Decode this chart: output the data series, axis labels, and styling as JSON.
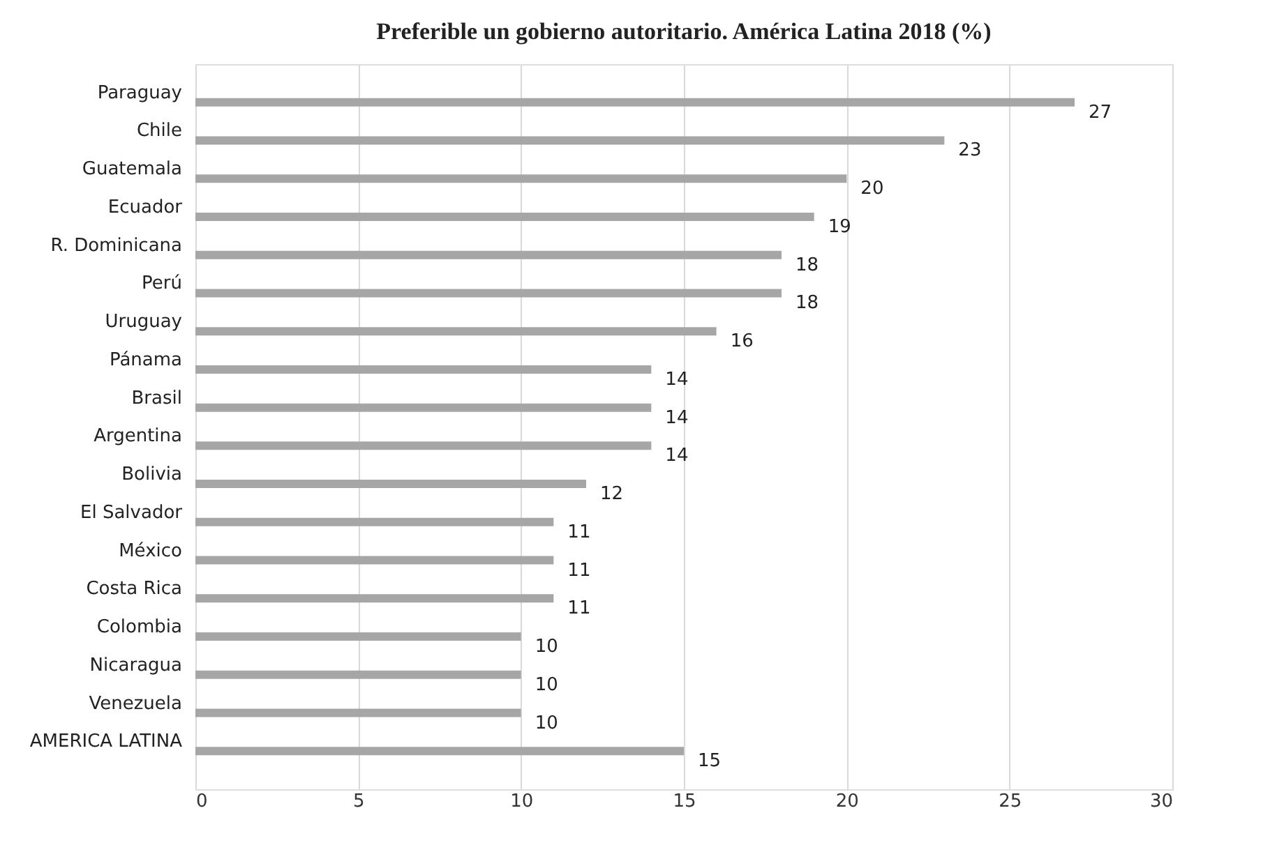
{
  "chart_data": {
    "type": "bar",
    "orientation": "horizontal",
    "title": "Preferible un gobierno autoritario. América Latina 2018 (%)",
    "categories": [
      "Paraguay",
      "Chile",
      "Guatemala",
      "Ecuador",
      "R. Dominicana",
      "Perú",
      "Uruguay",
      "Pánama",
      "Brasil",
      "Argentina",
      "Bolivia",
      "El Salvador",
      "México",
      "Costa Rica",
      "Colombia",
      "Nicaragua",
      "Venezuela",
      "AMERICA LATINA"
    ],
    "values": [
      27,
      23,
      20,
      19,
      18,
      18,
      16,
      14,
      14,
      14,
      12,
      11,
      11,
      11,
      10,
      10,
      10,
      15
    ],
    "color": "#a6a6a6",
    "xlim": [
      0,
      30
    ],
    "xticks": [
      0,
      5,
      10,
      15,
      20,
      25,
      30
    ],
    "grid": "x",
    "data_labels": true
  }
}
